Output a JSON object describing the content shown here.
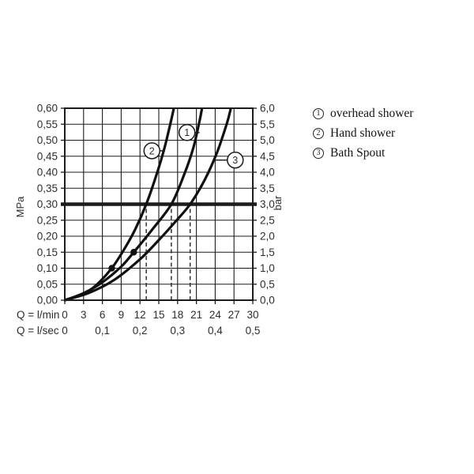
{
  "page": {
    "background": "#ffffff",
    "text_color": "#2e2e2e",
    "line_color": "#1c1c1c"
  },
  "legend": {
    "items": [
      {
        "number": "1",
        "label": "overhead shower"
      },
      {
        "number": "2",
        "label": "Hand shower"
      },
      {
        "number": "3",
        "label": "Bath Spout"
      }
    ]
  },
  "chart_data": {
    "type": "line",
    "title": "",
    "x_axis": {
      "label_primary": "Q = l/min",
      "ticks_primary": [
        "0",
        "3",
        "6",
        "9",
        "12",
        "15",
        "18",
        "21",
        "24",
        "27",
        "30"
      ],
      "label_secondary": "Q = l/sec",
      "ticks_secondary": [
        {
          "label": "0",
          "lmin": 0
        },
        {
          "label": "0,1",
          "lmin": 6
        },
        {
          "label": "0,2",
          "lmin": 12
        },
        {
          "label": "0,3",
          "lmin": 18
        },
        {
          "label": "0,4",
          "lmin": 24
        },
        {
          "label": "0,5",
          "lmin": 30
        }
      ],
      "range_lmin": [
        0,
        30
      ],
      "gridline_step_lmin": 3
    },
    "y_axis_left": {
      "label": "MPa",
      "ticks": [
        "0,60",
        "0,55",
        "0,50",
        "0,45",
        "0,40",
        "0,35",
        "0,30",
        "0,25",
        "0,20",
        "0,15",
        "0,10",
        "0,05",
        "0,00"
      ],
      "range_mpa": [
        0,
        0.6
      ],
      "gridline_step_mpa": 0.05
    },
    "y_axis_right": {
      "label": "bar",
      "ticks": [
        "6,0",
        "5,5",
        "5,0",
        "4,5",
        "4,0",
        "3,5",
        "3,0",
        "2,5",
        "2,0",
        "1,5",
        "1,0",
        "0,5",
        "0,0"
      ],
      "range_bar": [
        0,
        6
      ]
    },
    "series": [
      {
        "id": "1",
        "name": "overhead shower",
        "points_lmin_mpa": [
          [
            0,
            0
          ],
          [
            3,
            0.022
          ],
          [
            6,
            0.056
          ],
          [
            9,
            0.105
          ],
          [
            11,
            0.15
          ],
          [
            14,
            0.222
          ],
          [
            17,
            0.3
          ],
          [
            19,
            0.39
          ],
          [
            20.5,
            0.475
          ],
          [
            21.5,
            0.56
          ],
          [
            21.9,
            0.6
          ]
        ]
      },
      {
        "id": "2",
        "name": "Hand shower",
        "points_lmin_mpa": [
          [
            0,
            0
          ],
          [
            3,
            0.02
          ],
          [
            5,
            0.047
          ],
          [
            7.5,
            0.1
          ],
          [
            9.5,
            0.16
          ],
          [
            11.2,
            0.22
          ],
          [
            13,
            0.3
          ],
          [
            14.6,
            0.39
          ],
          [
            15.9,
            0.475
          ],
          [
            17,
            0.565
          ],
          [
            17.4,
            0.6
          ]
        ]
      },
      {
        "id": "3",
        "name": "Bath Spout",
        "points_lmin_mpa": [
          [
            0,
            0
          ],
          [
            4,
            0.024
          ],
          [
            8,
            0.065
          ],
          [
            12,
            0.128
          ],
          [
            15,
            0.188
          ],
          [
            17.5,
            0.242
          ],
          [
            20,
            0.3
          ],
          [
            22.3,
            0.375
          ],
          [
            24.3,
            0.462
          ],
          [
            25.9,
            0.555
          ],
          [
            26.5,
            0.6
          ]
        ]
      }
    ],
    "reference_line": {
      "mpa": 0.3,
      "bar": 3.0
    },
    "dashed_guides_lmin": [
      13,
      17,
      20
    ],
    "marker_dots": [
      {
        "lmin": 7.5,
        "mpa": 0.1
      },
      {
        "lmin": 11,
        "mpa": 0.15
      }
    ],
    "curve_callouts": [
      {
        "number": "1",
        "center_lmin": 19.5,
        "center_mpa": 0.524,
        "connect_lmin": 21.5
      },
      {
        "number": "2",
        "center_lmin": 13.9,
        "center_mpa": 0.467,
        "connect_lmin": 16.0
      },
      {
        "number": "3",
        "center_lmin": 27.2,
        "center_mpa": 0.438,
        "connect_lmin": 23.8
      }
    ]
  }
}
